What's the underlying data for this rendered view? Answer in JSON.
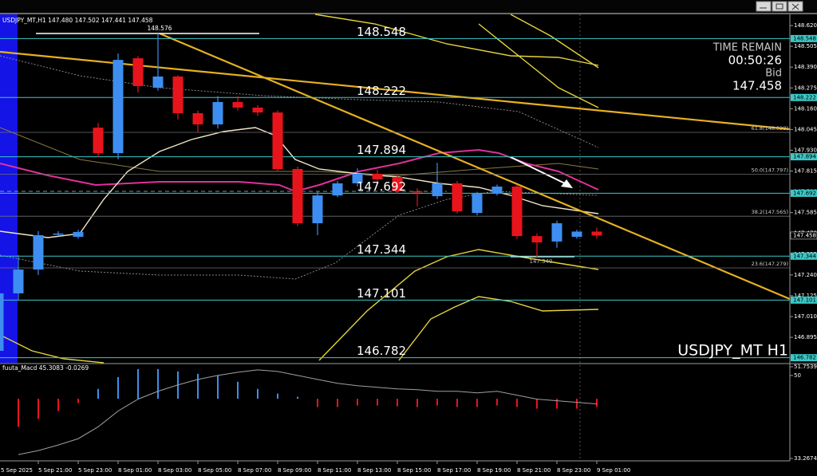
{
  "chart_data": {
    "type": "candlestick",
    "title": "USDJPY_MT,H1",
    "header_quote": [
      "147.480",
      "147.502",
      "147.441",
      "147.458"
    ],
    "categories": [
      "5 Sep 2025",
      null,
      "5 Sep 21:00",
      null,
      "5 Sep 23:00",
      null,
      "8 Sep 01:00",
      null,
      "8 Sep 03:00",
      null,
      "8 Sep 05:00",
      null,
      "8 Sep 07:00",
      null,
      "8 Sep 09:00",
      null,
      "8 Sep 11:00",
      null,
      "8 Sep 13:00",
      null,
      "8 Sep 15:00",
      null,
      "8 Sep 17:00",
      null,
      "8 Sep 19:00",
      null,
      "8 Sep 21:00",
      null,
      "8 Sep 23:00",
      null,
      "9 Sep 01:00"
    ],
    "open": [
      146.82,
      147.138,
      147.27,
      147.465,
      147.451,
      148.055,
      147.914,
      148.439,
      148.276,
      148.338,
      148.135,
      148.073,
      148.197,
      148.166,
      148.139,
      147.826,
      147.526,
      147.68,
      147.747,
      147.8,
      147.782,
      147.703,
      147.676,
      147.747,
      147.583,
      147.689,
      147.729,
      147.455,
      147.425,
      147.451,
      147.48
    ],
    "high": [
      147.15,
      147.35,
      147.482,
      147.482,
      147.49,
      148.08,
      148.466,
      148.45,
      148.576,
      148.345,
      148.15,
      148.23,
      148.23,
      148.18,
      148.15,
      147.84,
      147.7,
      147.76,
      147.83,
      147.82,
      147.8,
      147.72,
      147.86,
      147.76,
      147.7,
      147.74,
      147.74,
      147.47,
      147.54,
      147.49,
      147.502
    ],
    "low": [
      146.8,
      147.1,
      147.24,
      147.455,
      147.44,
      147.89,
      147.88,
      148.25,
      148.26,
      148.1,
      148.03,
      148.05,
      148.15,
      148.12,
      147.81,
      147.51,
      147.46,
      147.67,
      147.73,
      147.75,
      147.69,
      147.62,
      147.66,
      147.58,
      147.57,
      147.68,
      147.44,
      147.34,
      147.39,
      147.44,
      147.441
    ],
    "close": [
      147.138,
      147.27,
      147.46,
      147.469,
      147.478,
      147.914,
      148.43,
      148.285,
      148.338,
      148.135,
      148.073,
      148.197,
      148.166,
      148.139,
      147.826,
      147.526,
      147.68,
      147.747,
      147.8,
      147.769,
      147.703,
      147.7,
      147.747,
      147.592,
      147.689,
      147.729,
      147.455,
      147.42,
      147.526,
      147.48,
      147.458
    ],
    "up_color": "#3d8ef0",
    "down_color": "#e8141c",
    "ylim": [
      146.754,
      148.682
    ],
    "yticks": [
      {
        "value": 148.62,
        "label": "148.620"
      },
      148.505,
      {
        "value": 148.39,
        "label": "148.390"
      },
      148.275,
      {
        "value": 148.16,
        "label": "148.160"
      },
      148.045,
      {
        "value": 147.93,
        "label": "147.930"
      },
      147.815,
      {
        "value": 147.7,
        "label": "147.700"
      },
      147.585,
      {
        "value": 147.47,
        "label": "147.470"
      },
      147.355,
      {
        "value": 147.24,
        "label": "147.240"
      },
      147.125,
      {
        "value": 147.01,
        "label": "147.010"
      },
      146.895
    ],
    "levels": {
      "values": [
        148.548,
        148.222,
        147.894,
        147.692,
        147.344,
        147.101,
        146.782
      ],
      "color": "#3cc8c8"
    },
    "fib_levels": [
      {
        "value": 148.029,
        "label": "61.8(148.029)"
      },
      {
        "value": 147.797,
        "label": "50.0(147.797)"
      },
      {
        "value": 147.565,
        "label": "38.2(147.565)"
      },
      {
        "value": 147.279,
        "label": "23.6(147.279)"
      }
    ],
    "annotations": [
      {
        "value": 148.576,
        "label": "148.576"
      },
      {
        "value": 147.34,
        "label": "147.340"
      }
    ],
    "info": {
      "time_label": "TIME REMAIN",
      "time": "00:50:26",
      "bid_label": "Bid",
      "bid": "147.458"
    },
    "watermark": "USDJPY_MT H1",
    "indicator": {
      "type": "macd",
      "name": "fuuta_Macd",
      "printed": [
        45.3083,
        -0.0269
      ],
      "ylim": [
        32.79,
        52.39
      ],
      "yticks": [
        51.7539,
        50,
        33.2674
      ],
      "histogram": [
        null,
        39.64,
        41.24,
        42.83,
        44.42,
        47.29,
        49.68,
        51.28,
        51.28,
        50.8,
        50.32,
        50.0,
        48.73,
        47.29,
        46.34,
        45.7,
        43.63,
        43.63,
        43.94,
        43.94,
        43.78,
        43.63,
        43.94,
        43.63,
        43.63,
        43.94,
        43.63,
        43.31,
        43.31,
        43.31,
        43.63
      ],
      "line": [
        null,
        34.06,
        34.86,
        35.98,
        37.25,
        39.64,
        42.83,
        45.22,
        46.81,
        48.09,
        49.2,
        50.0,
        50.64,
        51.12,
        50.8,
        50.0,
        49.2,
        48.41,
        47.93,
        47.61,
        47.29,
        47.13,
        46.81,
        46.81,
        46.49,
        46.81,
        46.02,
        45.22,
        44.9,
        44.58,
        44.26
      ],
      "up_color": "#3d8ef0",
      "down_color": "#e8141c",
      "line_color": "#a0a0a0"
    }
  }
}
